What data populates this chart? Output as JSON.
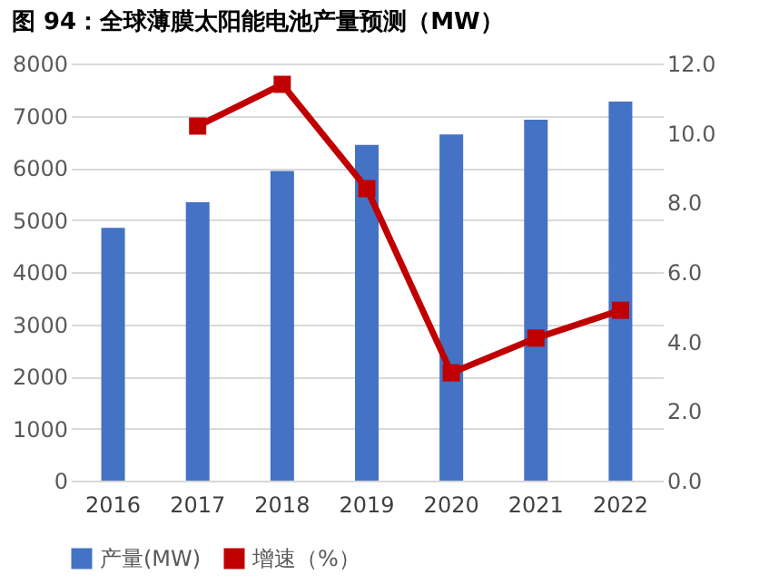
{
  "chart_data": {
    "type": "bar",
    "title": "图 94：全球薄膜太阳能电池产量预测（MW）",
    "categories": [
      "2016",
      "2017",
      "2018",
      "2019",
      "2020",
      "2021",
      "2022"
    ],
    "series": [
      {
        "name": "产量(MW)",
        "color": "#4472c4",
        "values": [
          4850,
          5340,
          5940,
          6440,
          6640,
          6920,
          7270
        ]
      },
      {
        "name": "增速（%）",
        "type": "line",
        "axis": "y2",
        "color": "#c00000",
        "values": [
          null,
          10.2,
          11.4,
          8.4,
          3.1,
          4.1,
          4.9
        ]
      }
    ],
    "ylim": [
      0,
      8000
    ],
    "yticks": [
      0,
      1000,
      2000,
      3000,
      4000,
      5000,
      6000,
      7000,
      8000
    ],
    "y2lim": [
      0,
      12
    ],
    "y2ticks": [
      {
        "value": 0,
        "label": "0.0"
      },
      {
        "value": 2,
        "label": "2.0"
      },
      {
        "value": 4,
        "label": "4.0"
      },
      {
        "value": 6,
        "label": "6.0"
      },
      {
        "value": 8,
        "label": "8.0"
      },
      {
        "value": 10,
        "label": "10.0"
      },
      {
        "value": 12,
        "label": "12.0"
      }
    ],
    "grid": "y",
    "legend": "bottom",
    "marker": "square",
    "line_style": "solid"
  }
}
